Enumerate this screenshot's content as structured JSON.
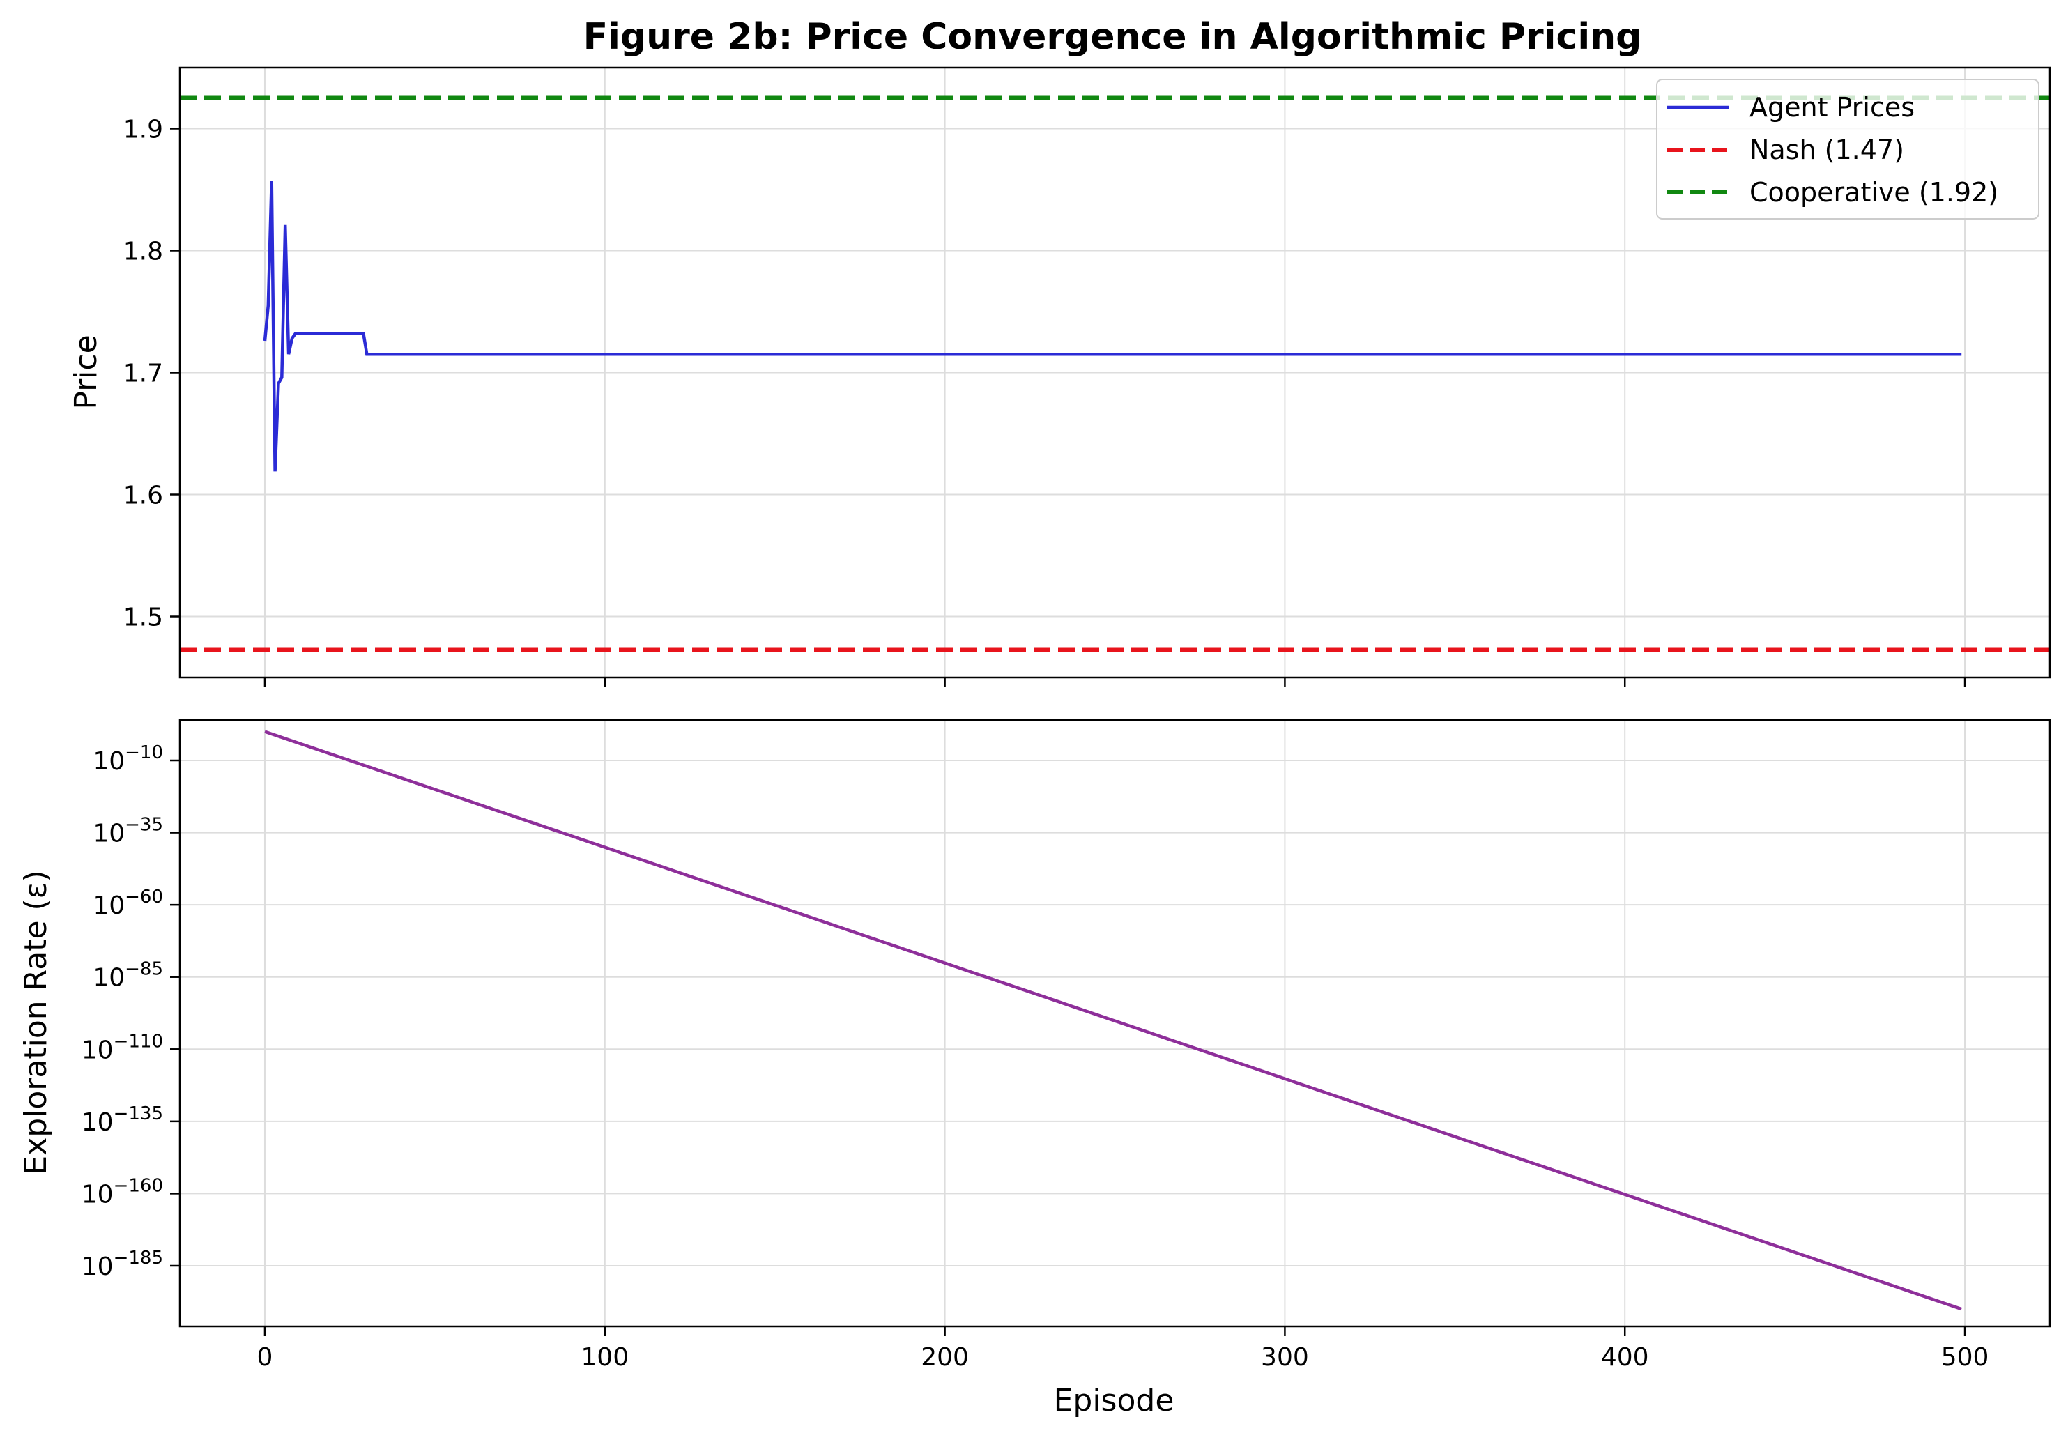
{
  "chart_data": [
    {
      "type": "line",
      "title": "Figure 2b: Price Convergence in Algorithmic Pricing",
      "xlabel": "",
      "ylabel": "Price",
      "xlim": [
        -25,
        525
      ],
      "ylim": [
        1.45,
        1.95
      ],
      "xticks": [
        0,
        100,
        200,
        300,
        400,
        500
      ],
      "yticks": [
        1.5,
        1.6,
        1.7,
        1.8,
        1.9
      ],
      "ytick_labels": [
        "1.5",
        "1.6",
        "1.7",
        "1.8",
        "1.9"
      ],
      "grid": true,
      "legend_position": "top-right",
      "series": [
        {
          "name": "Agent Prices",
          "color": "#2b2bd6",
          "style": "solid",
          "x": [
            0,
            1,
            2,
            3,
            4,
            5,
            6,
            7,
            8,
            9,
            10,
            20,
            29,
            30,
            100,
            200,
            300,
            400,
            499
          ],
          "y": [
            1.726,
            1.755,
            1.857,
            1.619,
            1.691,
            1.696,
            1.821,
            1.715,
            1.728,
            1.732,
            1.732,
            1.732,
            1.732,
            1.715,
            1.715,
            1.715,
            1.715,
            1.715,
            1.715
          ]
        },
        {
          "name": "Nash (1.47)",
          "color": "#e8141c",
          "style": "dashed",
          "hline": 1.473
        },
        {
          "name": "Cooperative (1.92)",
          "color": "#118811",
          "style": "dashed",
          "hline": 1.925
        }
      ]
    },
    {
      "type": "line",
      "title": "",
      "xlabel": "Episode",
      "ylabel": "Exploration Rate (ε)",
      "yscale": "log",
      "xlim": [
        -25,
        525
      ],
      "ylim_exponent": [
        -206,
        4
      ],
      "xticks": [
        0,
        100,
        200,
        300,
        400,
        500
      ],
      "xtick_labels": [
        "0",
        "100",
        "200",
        "300",
        "400",
        "500"
      ],
      "ytick_exponents": [
        -10,
        -35,
        -60,
        -85,
        -110,
        -135,
        -160,
        -185
      ],
      "ytick_base": "10",
      "grid": true,
      "series": [
        {
          "name": "",
          "color": "#8e2f9a",
          "style": "solid",
          "x": [
            0,
            499
          ],
          "y_exponent": [
            0,
            -200
          ]
        }
      ]
    }
  ]
}
